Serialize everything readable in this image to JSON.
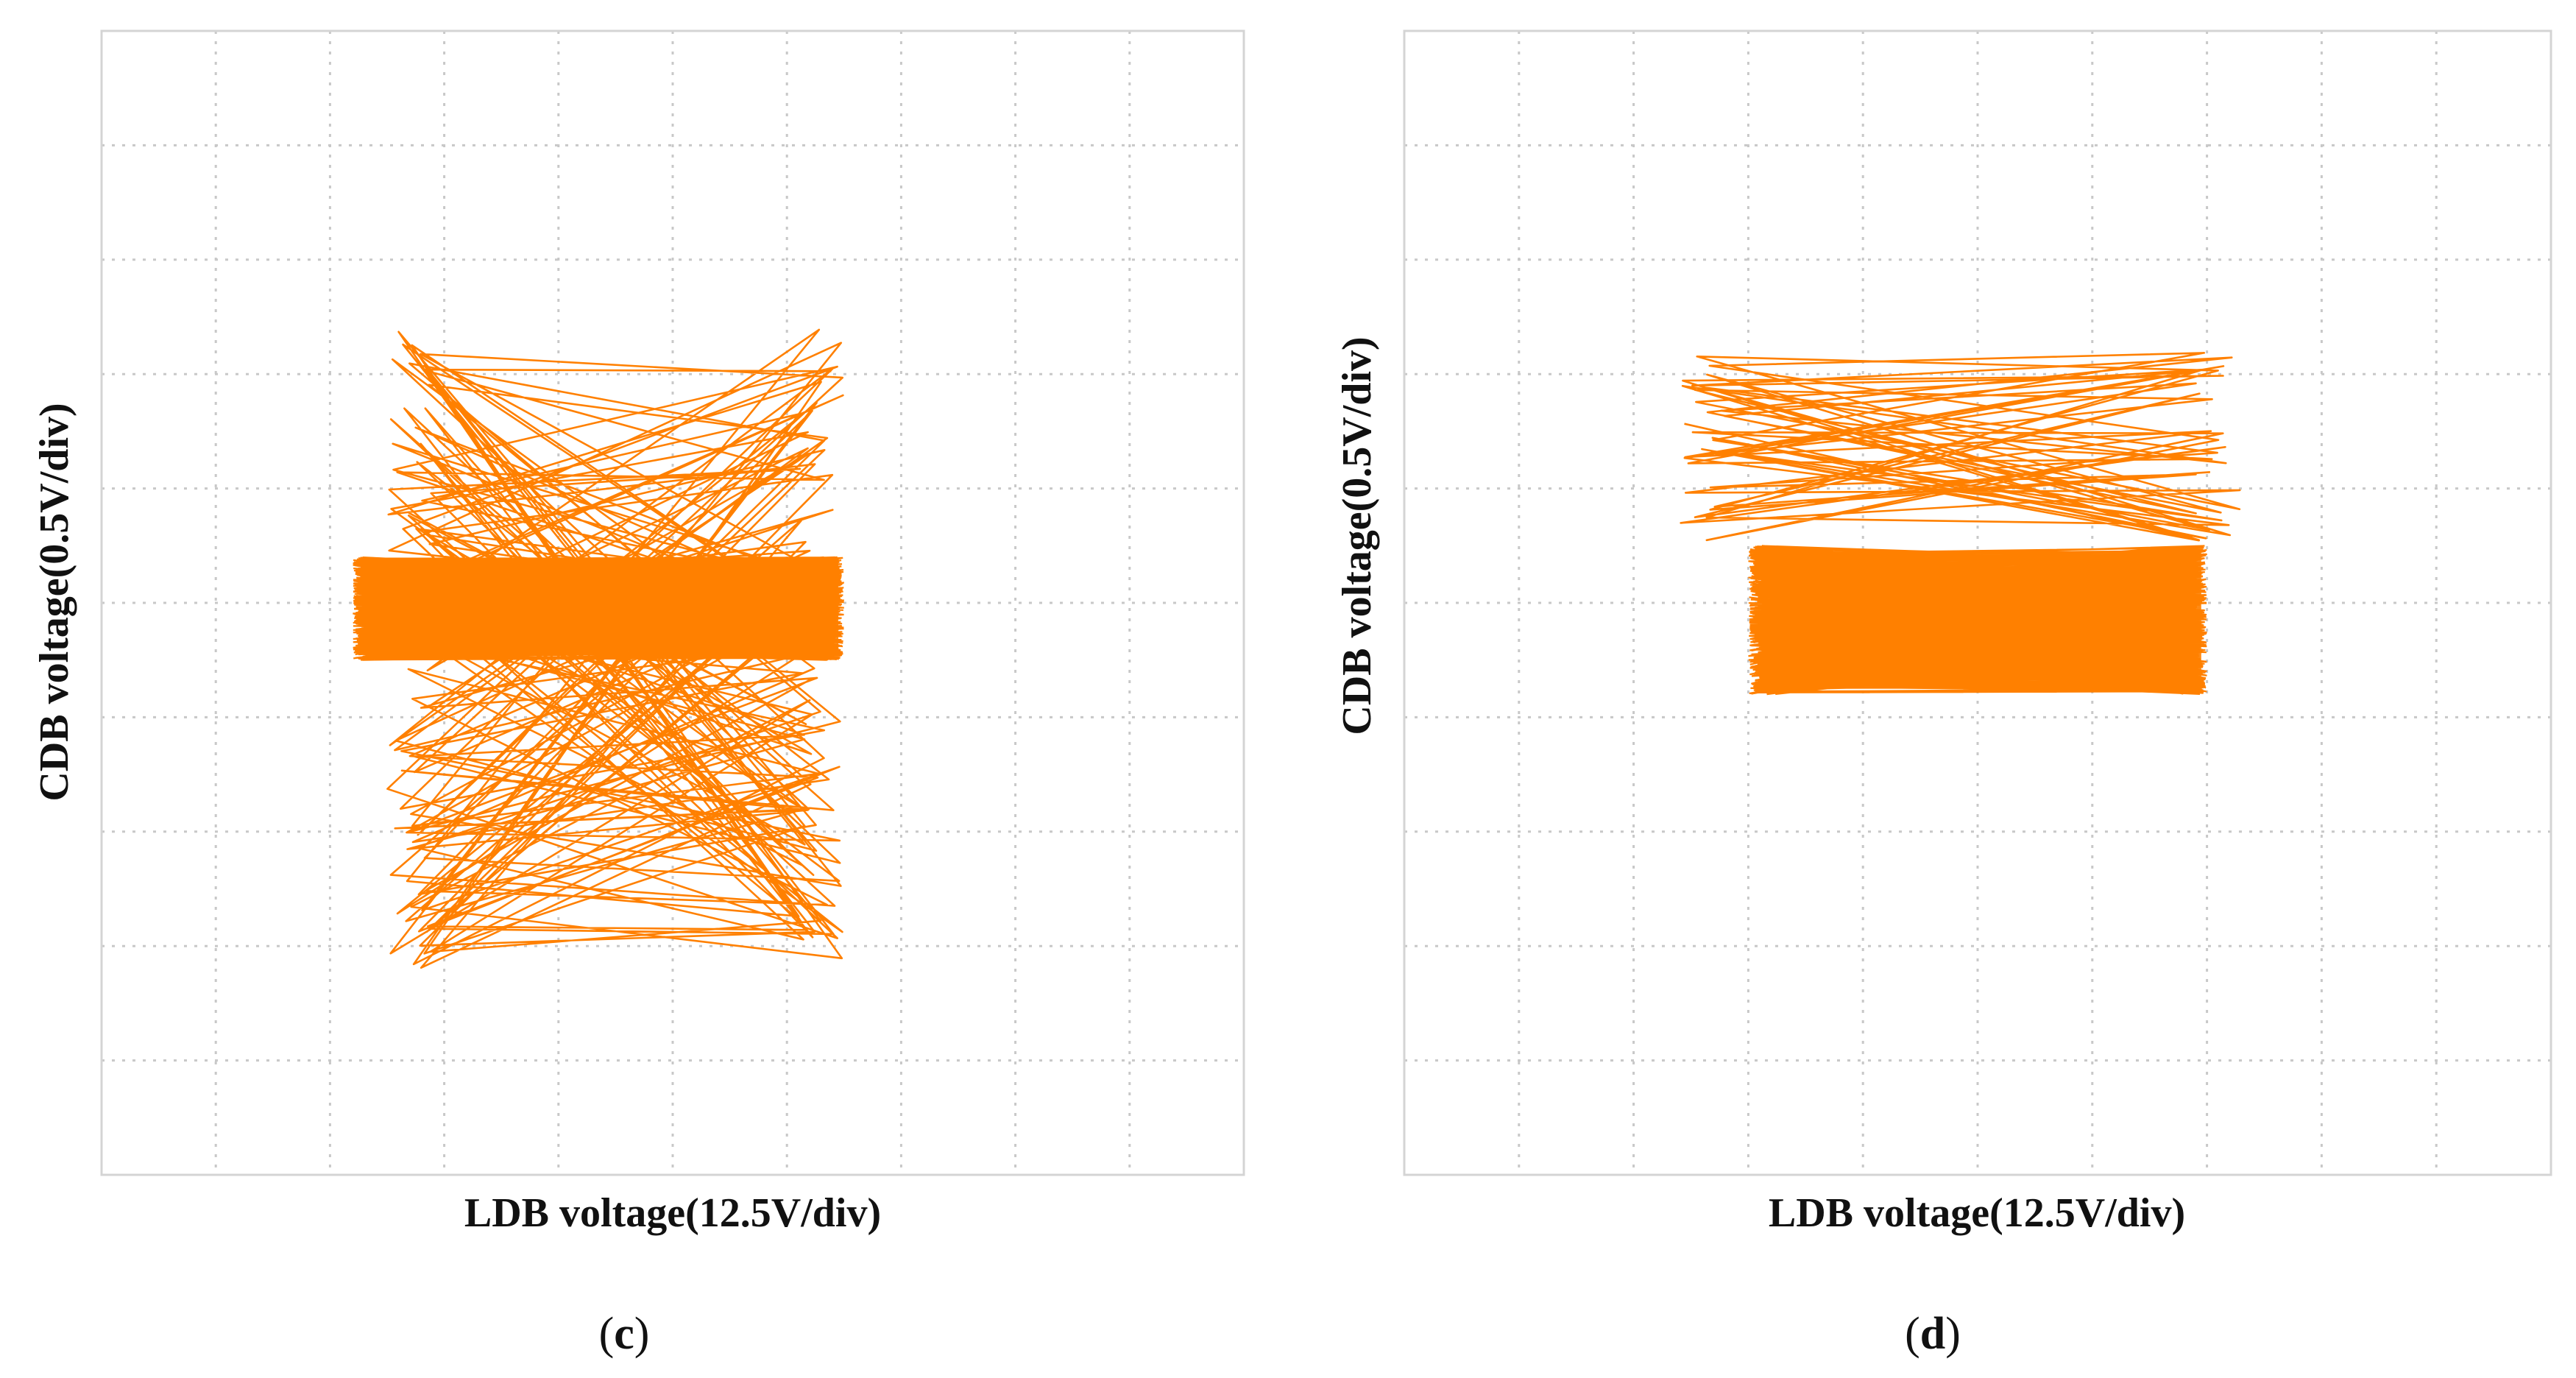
{
  "colors": {
    "trace": "#ff8000",
    "grid": "#c8c8c8",
    "frame": "#d4d4d4"
  },
  "chart_data": [
    {
      "type": "line",
      "panel": "c",
      "xlabel": "LDB voltage(12.5V/div)",
      "ylabel": "CDB voltage(0.5V/div)",
      "x_divisions": 10,
      "y_divisions": 10,
      "grid": true,
      "band": {
        "x_range": [
          2.2,
          6.5
        ],
        "y_range": [
          4.5,
          5.4
        ]
      },
      "excursions": {
        "x_range": [
          2.5,
          6.5
        ],
        "y_range": [
          1.8,
          7.5
        ]
      }
    },
    {
      "type": "line",
      "panel": "d",
      "xlabel": "LDB voltage(12.5V/div)",
      "ylabel": "CDB voltage(0.5V/div)",
      "x_divisions": 10,
      "y_divisions": 10,
      "grid": true,
      "band": {
        "x_range": [
          3.0,
          7.0
        ],
        "y_range": [
          4.2,
          5.5
        ]
      },
      "excursions": {
        "x_range": [
          2.4,
          7.3
        ],
        "y_range": [
          5.5,
          7.2
        ]
      }
    }
  ],
  "captions": [
    {
      "open": "(",
      "letter": "c",
      "close": ")"
    },
    {
      "open": "(",
      "letter": "d",
      "close": ")"
    }
  ]
}
